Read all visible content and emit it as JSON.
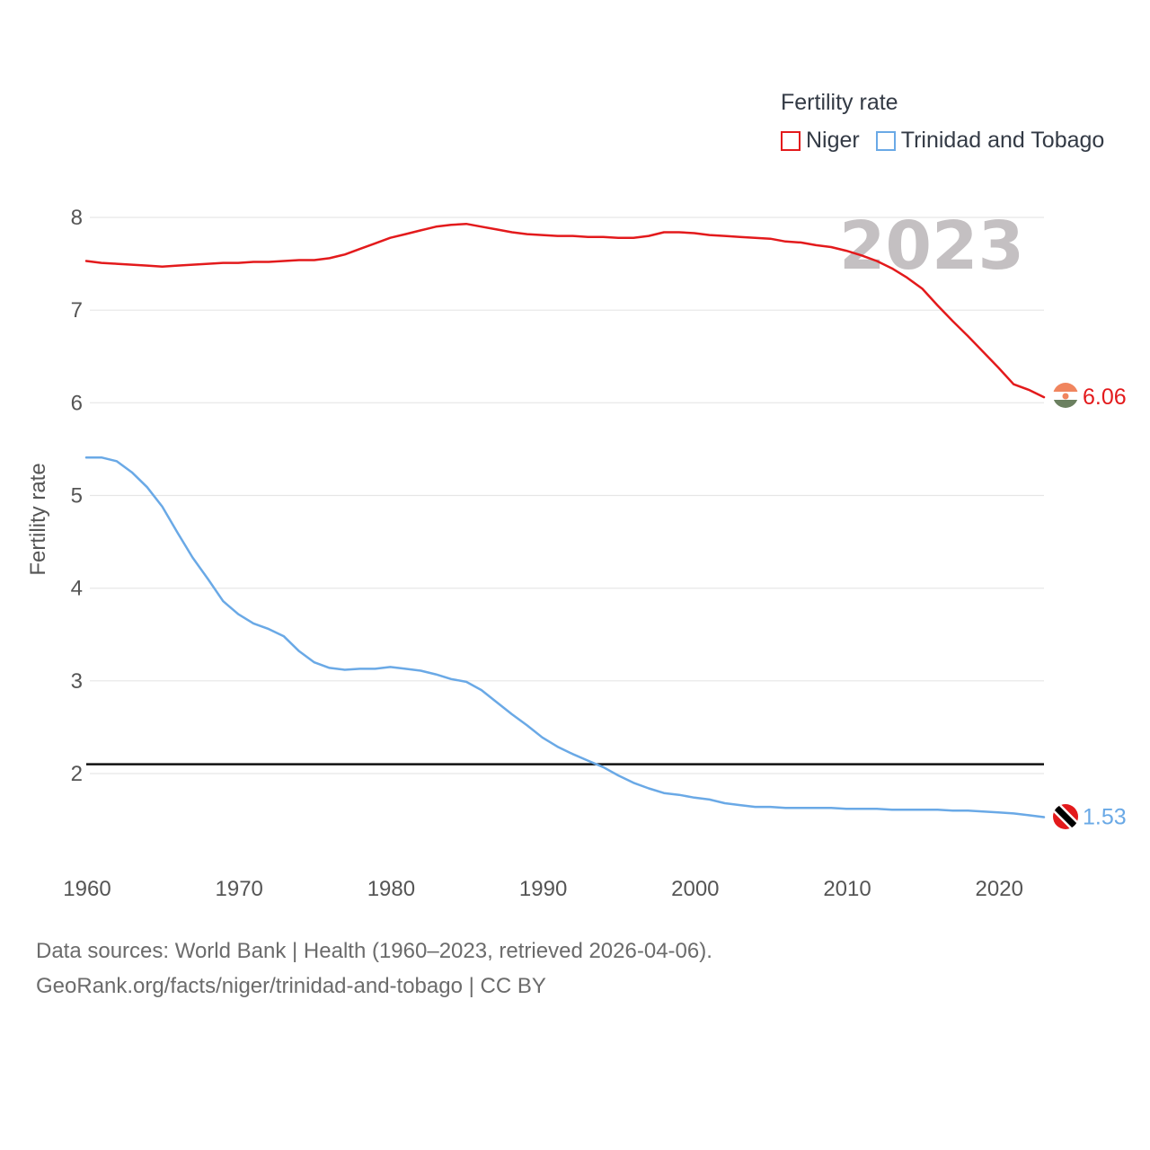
{
  "legend": {
    "title": "Fertility rate",
    "items": [
      {
        "label": "Niger",
        "color": "#e31a1c"
      },
      {
        "label": "Trinidad and Tobago",
        "color": "#6aa9e6"
      }
    ]
  },
  "footer": {
    "line1": "Data sources: World Bank | Health (1960–2023, retrieved 2026-04-06).",
    "line2": "GeoRank.org/facts/niger/trinidad-and-tobago | CC BY"
  },
  "chart_data": {
    "type": "line",
    "title": "Fertility rate",
    "ylabel": "Fertility rate",
    "xlabel": "",
    "xlim": [
      1960,
      2023
    ],
    "ylim": [
      1,
      8.3
    ],
    "xticks": [
      1960,
      1970,
      1980,
      1990,
      2000,
      2010,
      2020
    ],
    "yticks": [
      2,
      3,
      4,
      5,
      6,
      7,
      8
    ],
    "year_label": "2023",
    "reference_line": 2.1,
    "grid": true,
    "series": [
      {
        "name": "Niger",
        "color": "#e31a1c",
        "end_label": "6.06",
        "x": [
          1960,
          1961,
          1962,
          1963,
          1964,
          1965,
          1966,
          1967,
          1968,
          1969,
          1970,
          1971,
          1972,
          1973,
          1974,
          1975,
          1976,
          1977,
          1978,
          1979,
          1980,
          1981,
          1982,
          1983,
          1984,
          1985,
          1986,
          1987,
          1988,
          1989,
          1990,
          1991,
          1992,
          1993,
          1994,
          1995,
          1996,
          1997,
          1998,
          1999,
          2000,
          2001,
          2002,
          2003,
          2004,
          2005,
          2006,
          2007,
          2008,
          2009,
          2010,
          2011,
          2012,
          2013,
          2014,
          2015,
          2016,
          2017,
          2018,
          2019,
          2020,
          2021,
          2022,
          2023
        ],
        "y": [
          7.53,
          7.51,
          7.5,
          7.49,
          7.48,
          7.47,
          7.48,
          7.49,
          7.5,
          7.51,
          7.51,
          7.52,
          7.52,
          7.53,
          7.54,
          7.54,
          7.56,
          7.6,
          7.66,
          7.72,
          7.78,
          7.82,
          7.86,
          7.9,
          7.92,
          7.93,
          7.9,
          7.87,
          7.84,
          7.82,
          7.81,
          7.8,
          7.8,
          7.79,
          7.79,
          7.78,
          7.78,
          7.8,
          7.84,
          7.84,
          7.83,
          7.81,
          7.8,
          7.79,
          7.78,
          7.77,
          7.74,
          7.73,
          7.7,
          7.68,
          7.64,
          7.59,
          7.53,
          7.45,
          7.35,
          7.23,
          7.05,
          6.88,
          6.72,
          6.55,
          6.38,
          6.2,
          6.14,
          6.06
        ]
      },
      {
        "name": "Trinidad and Tobago",
        "color": "#6aa9e6",
        "end_label": "1.53",
        "x": [
          1960,
          1961,
          1962,
          1963,
          1964,
          1965,
          1966,
          1967,
          1968,
          1969,
          1970,
          1971,
          1972,
          1973,
          1974,
          1975,
          1976,
          1977,
          1978,
          1979,
          1980,
          1981,
          1982,
          1983,
          1984,
          1985,
          1986,
          1987,
          1988,
          1989,
          1990,
          1991,
          1992,
          1993,
          1994,
          1995,
          1996,
          1997,
          1998,
          1999,
          2000,
          2001,
          2002,
          2003,
          2004,
          2005,
          2006,
          2007,
          2008,
          2009,
          2010,
          2011,
          2012,
          2013,
          2014,
          2015,
          2016,
          2017,
          2018,
          2019,
          2020,
          2021,
          2022,
          2023
        ],
        "y": [
          5.41,
          5.41,
          5.37,
          5.25,
          5.09,
          4.88,
          4.6,
          4.33,
          4.1,
          3.86,
          3.72,
          3.62,
          3.56,
          3.48,
          3.32,
          3.2,
          3.14,
          3.12,
          3.13,
          3.13,
          3.15,
          3.13,
          3.11,
          3.07,
          3.02,
          2.99,
          2.9,
          2.77,
          2.64,
          2.52,
          2.39,
          2.29,
          2.21,
          2.14,
          2.07,
          1.98,
          1.9,
          1.84,
          1.79,
          1.77,
          1.74,
          1.72,
          1.68,
          1.66,
          1.64,
          1.64,
          1.63,
          1.63,
          1.63,
          1.63,
          1.62,
          1.62,
          1.62,
          1.61,
          1.61,
          1.61,
          1.61,
          1.6,
          1.6,
          1.59,
          1.58,
          1.57,
          1.55,
          1.53
        ]
      }
    ]
  }
}
